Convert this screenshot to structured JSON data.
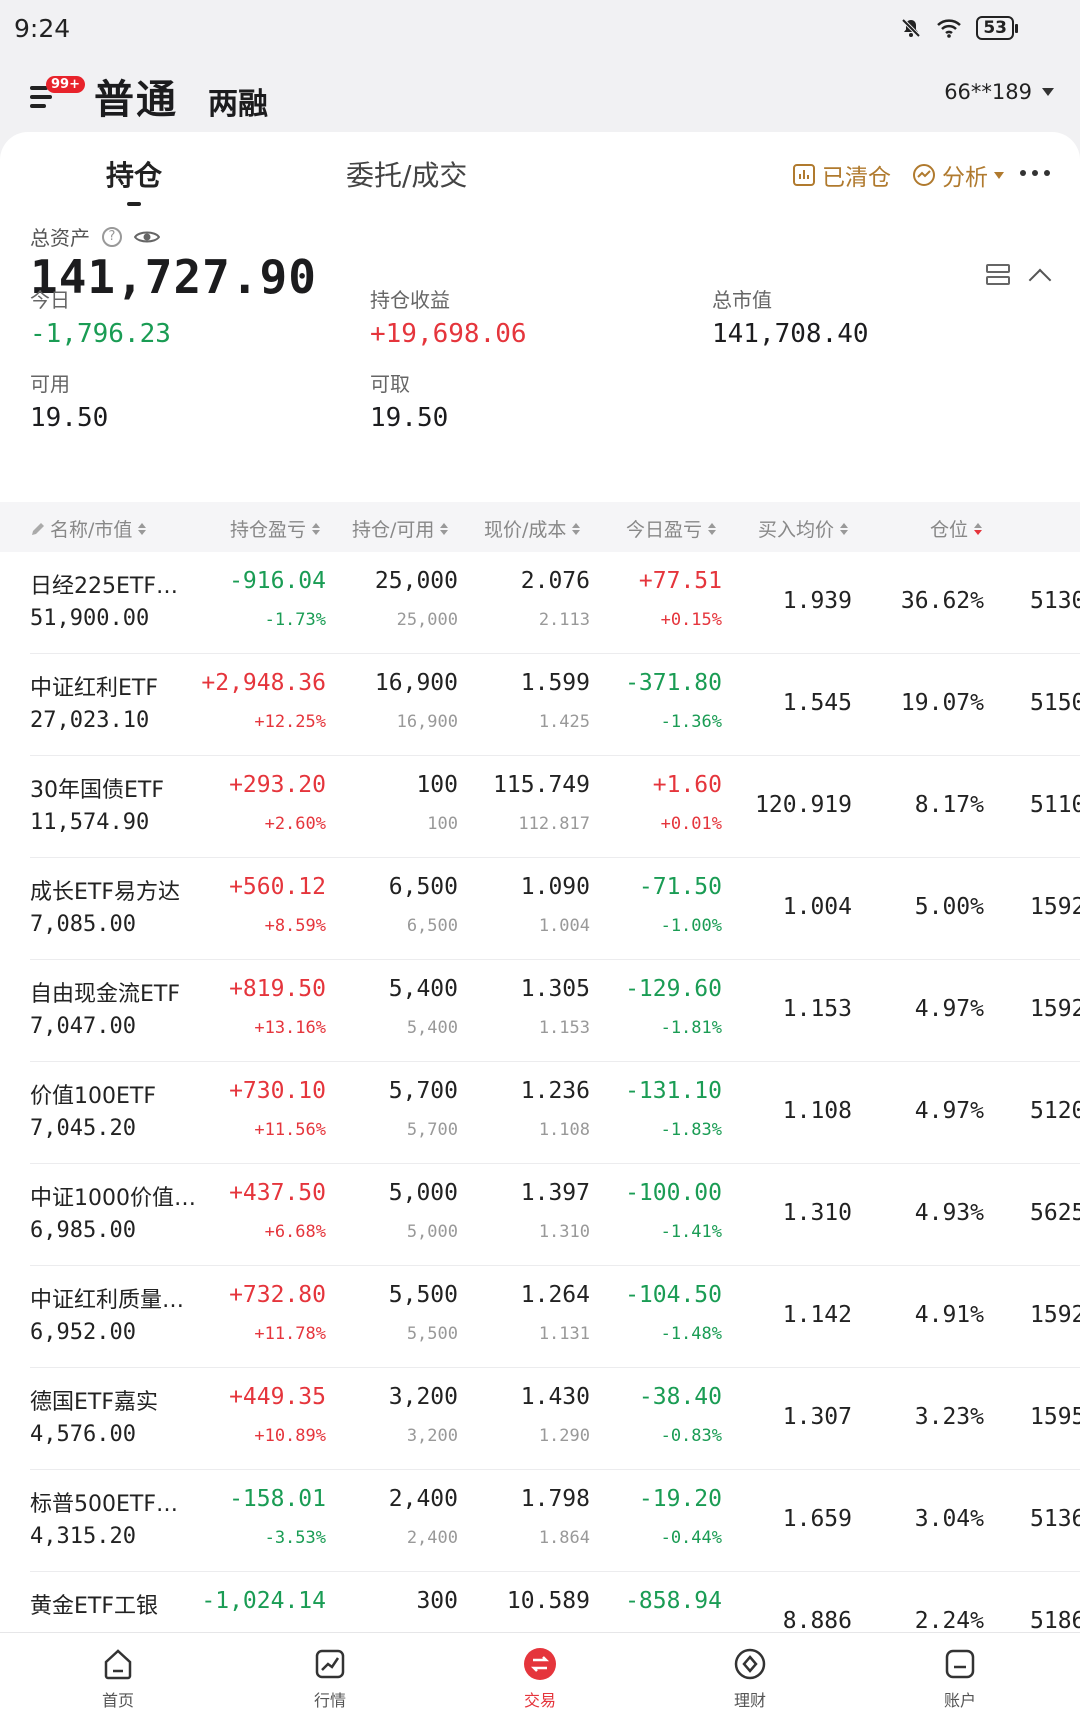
{
  "status": {
    "time": "9:24",
    "battery": "53"
  },
  "header": {
    "badge": "99+",
    "mode_active": "普通",
    "mode_inactive": "两融",
    "account": "66**189"
  },
  "tabs": {
    "holdings": "持仓",
    "orders": "委托/成交"
  },
  "tools": {
    "cleared": "已清仓",
    "analysis": "分析"
  },
  "summary": {
    "total_label": "总资产",
    "total_value": "141,727.90",
    "today_label": "今日",
    "today_value": "-1,796.23",
    "pnl_label": "持仓收益",
    "pnl_value": "+19,698.06",
    "mv_label": "总市值",
    "mv_value": "141,708.40",
    "avail_label": "可用",
    "avail_value": "19.50",
    "withdraw_label": "可取",
    "withdraw_value": "19.50"
  },
  "columns": [
    "名称/市值",
    "持仓盈亏",
    "持仓/可用",
    "现价/成本",
    "今日盈亏",
    "买入均价",
    "仓位"
  ],
  "rows": [
    {
      "name": "日经225ETF…",
      "mv": "51,900.00",
      "pnl": "-916.04",
      "pnl_pct": "-1.73%",
      "qty": "25,000",
      "avail": "25,000",
      "price": "2.076",
      "cost": "2.113",
      "today": "+77.51",
      "today_pct": "+0.15%",
      "avg": "1.939",
      "weight": "36.62%",
      "code": "5130",
      "pnl_color": "green",
      "today_color": "red"
    },
    {
      "name": "中证红利ETF",
      "mv": "27,023.10",
      "pnl": "+2,948.36",
      "pnl_pct": "+12.25%",
      "qty": "16,900",
      "avail": "16,900",
      "price": "1.599",
      "cost": "1.425",
      "today": "-371.80",
      "today_pct": "-1.36%",
      "avg": "1.545",
      "weight": "19.07%",
      "code": "5150",
      "pnl_color": "red",
      "today_color": "green"
    },
    {
      "name": "30年国债ETF",
      "mv": "11,574.90",
      "pnl": "+293.20",
      "pnl_pct": "+2.60%",
      "qty": "100",
      "avail": "100",
      "price": "115.749",
      "cost": "112.817",
      "today": "+1.60",
      "today_pct": "+0.01%",
      "avg": "120.919",
      "weight": "8.17%",
      "code": "5110",
      "pnl_color": "red",
      "today_color": "red"
    },
    {
      "name": "成长ETF易方达",
      "mv": "7,085.00",
      "pnl": "+560.12",
      "pnl_pct": "+8.59%",
      "qty": "6,500",
      "avail": "6,500",
      "price": "1.090",
      "cost": "1.004",
      "today": "-71.50",
      "today_pct": "-1.00%",
      "avg": "1.004",
      "weight": "5.00%",
      "code": "1592",
      "pnl_color": "red",
      "today_color": "green"
    },
    {
      "name": "自由现金流ETF",
      "mv": "7,047.00",
      "pnl": "+819.50",
      "pnl_pct": "+13.16%",
      "qty": "5,400",
      "avail": "5,400",
      "price": "1.305",
      "cost": "1.153",
      "today": "-129.60",
      "today_pct": "-1.81%",
      "avg": "1.153",
      "weight": "4.97%",
      "code": "1592",
      "pnl_color": "red",
      "today_color": "green"
    },
    {
      "name": "价值100ETF",
      "mv": "7,045.20",
      "pnl": "+730.10",
      "pnl_pct": "+11.56%",
      "qty": "5,700",
      "avail": "5,700",
      "price": "1.236",
      "cost": "1.108",
      "today": "-131.10",
      "today_pct": "-1.83%",
      "avg": "1.108",
      "weight": "4.97%",
      "code": "5120",
      "pnl_color": "red",
      "today_color": "green"
    },
    {
      "name": "中证1000价值…",
      "mv": "6,985.00",
      "pnl": "+437.50",
      "pnl_pct": "+6.68%",
      "qty": "5,000",
      "avail": "5,000",
      "price": "1.397",
      "cost": "1.310",
      "today": "-100.00",
      "today_pct": "-1.41%",
      "avg": "1.310",
      "weight": "4.93%",
      "code": "5625",
      "pnl_color": "red",
      "today_color": "green"
    },
    {
      "name": "中证红利质量…",
      "mv": "6,952.00",
      "pnl": "+732.80",
      "pnl_pct": "+11.78%",
      "qty": "5,500",
      "avail": "5,500",
      "price": "1.264",
      "cost": "1.131",
      "today": "-104.50",
      "today_pct": "-1.48%",
      "avg": "1.142",
      "weight": "4.91%",
      "code": "1592",
      "pnl_color": "red",
      "today_color": "green"
    },
    {
      "name": "德国ETF嘉实",
      "mv": "4,576.00",
      "pnl": "+449.35",
      "pnl_pct": "+10.89%",
      "qty": "3,200",
      "avail": "3,200",
      "price": "1.430",
      "cost": "1.290",
      "today": "-38.40",
      "today_pct": "-0.83%",
      "avg": "1.307",
      "weight": "3.23%",
      "code": "1595",
      "pnl_color": "red",
      "today_color": "green"
    },
    {
      "name": "标普500ETF…",
      "mv": "4,315.20",
      "pnl": "-158.01",
      "pnl_pct": "-3.53%",
      "qty": "2,400",
      "avail": "2,400",
      "price": "1.798",
      "cost": "1.864",
      "today": "-19.20",
      "today_pct": "-0.44%",
      "avg": "1.659",
      "weight": "3.04%",
      "code": "5136",
      "pnl_color": "green",
      "today_color": "green"
    },
    {
      "name": "黄金ETF工银",
      "mv": "",
      "pnl": "-1,024.14",
      "pnl_pct": "",
      "qty": "300",
      "avail": "",
      "price": "10.589",
      "cost": "",
      "today": "-858.94",
      "today_pct": "",
      "avg": "8.886",
      "weight": "2.24%",
      "code": "5186",
      "pnl_color": "green",
      "today_color": "green"
    }
  ],
  "nav": {
    "home": "首页",
    "market": "行情",
    "trade": "交易",
    "wealth": "理财",
    "account": "账户"
  },
  "colors": {
    "up": "#e5353c",
    "down": "#1a9c54",
    "accent_gold": "#b07a2e"
  }
}
